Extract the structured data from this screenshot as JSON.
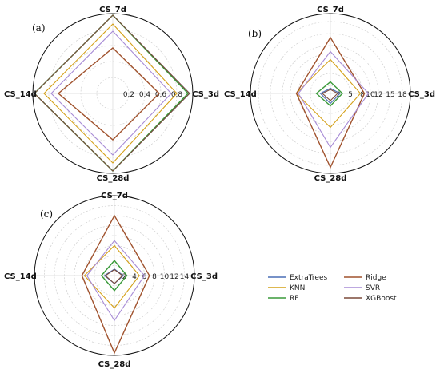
{
  "chart_data": [
    {
      "type": "radar",
      "panel_label": "(a)",
      "axes": [
        "CS_7d",
        "CS_3d",
        "CS_28d",
        "CS_14d"
      ],
      "tick_values": [
        0.2,
        0.4,
        0.6,
        0.8
      ],
      "tick_labels": [
        "0.2",
        "0.4",
        "0.6",
        "0.8"
      ],
      "rmax": 1.0,
      "grid": true,
      "series": [
        {
          "name": "ExtraTrees",
          "values": [
            0.98,
            0.96,
            0.97,
            0.98
          ]
        },
        {
          "name": "KNN",
          "values": [
            0.87,
            0.8,
            0.87,
            0.86
          ]
        },
        {
          "name": "RF",
          "values": [
            0.98,
            0.94,
            0.97,
            0.98
          ]
        },
        {
          "name": "Ridge",
          "values": [
            0.57,
            0.58,
            0.58,
            0.68
          ]
        },
        {
          "name": "SVR",
          "values": [
            0.78,
            0.73,
            0.77,
            0.77
          ]
        },
        {
          "name": "XGBoost",
          "values": [
            0.98,
            0.96,
            0.97,
            0.98
          ]
        }
      ]
    },
    {
      "type": "radar",
      "panel_label": "(b)",
      "axes": [
        "CS_7d",
        "CS_3d",
        "CS_28d",
        "CS_14d"
      ],
      "tick_values": [
        2,
        5,
        8,
        10,
        12,
        15,
        18
      ],
      "tick_labels": [
        "2",
        "5",
        "8",
        "10",
        "12",
        "15",
        "18"
      ],
      "rmax": 20,
      "grid": true,
      "series": [
        {
          "name": "ExtraTrees",
          "values": [
            1.3,
            2.4,
            2.5,
            2.5
          ]
        },
        {
          "name": "KNN",
          "values": [
            8.5,
            7.5,
            8.5,
            8.5
          ]
        },
        {
          "name": "RF",
          "values": [
            2.9,
            3.0,
            3.1,
            3.5
          ]
        },
        {
          "name": "Ridge",
          "values": [
            14.0,
            8.5,
            18.5,
            8.5
          ]
        },
        {
          "name": "SVR",
          "values": [
            10.5,
            9.5,
            13.5,
            8.0
          ]
        },
        {
          "name": "XGBoost",
          "values": [
            1.0,
            1.8,
            1.8,
            2.0
          ]
        }
      ]
    },
    {
      "type": "radar",
      "panel_label": "(c)",
      "axes": [
        "CS_7d",
        "CS_3d",
        "CS_28d",
        "CS_14d"
      ],
      "tick_values": [
        2,
        4,
        6,
        8,
        10,
        12,
        14
      ],
      "tick_labels": [
        "2",
        "4",
        "6",
        "8",
        "10",
        "12",
        "14"
      ],
      "rmax": 16,
      "grid": true,
      "series": [
        {
          "name": "ExtraTrees",
          "values": [
            1.3,
            1.8,
            1.6,
            2.0
          ]
        },
        {
          "name": "KNN",
          "values": [
            6.0,
            5.0,
            6.5,
            6.0
          ]
        },
        {
          "name": "RF",
          "values": [
            3.0,
            2.5,
            3.0,
            2.6
          ]
        },
        {
          "name": "Ridge",
          "values": [
            12.0,
            7.0,
            15.5,
            6.5
          ]
        },
        {
          "name": "SVR",
          "values": [
            7.0,
            6.0,
            9.0,
            5.5
          ]
        },
        {
          "name": "XGBoost",
          "values": [
            1.2,
            1.6,
            1.6,
            1.8
          ]
        }
      ]
    }
  ],
  "legend": {
    "placement": "bottom-right",
    "items": [
      {
        "name": "ExtraTrees",
        "color": "#4a6fb5"
      },
      {
        "name": "Ridge",
        "color": "#a0522d"
      },
      {
        "name": "KNN",
        "color": "#d4a017"
      },
      {
        "name": "SVR",
        "color": "#a78bd6"
      },
      {
        "name": "RF",
        "color": "#3a9a3a"
      },
      {
        "name": "XGBoost",
        "color": "#7b4a3a"
      }
    ]
  },
  "colors": {
    "ExtraTrees": "#4a6fb5",
    "KNN": "#d4a017",
    "RF": "#3a9a3a",
    "Ridge": "#a0522d",
    "SVR": "#a78bd6",
    "XGBoost": "#7b4a3a"
  }
}
